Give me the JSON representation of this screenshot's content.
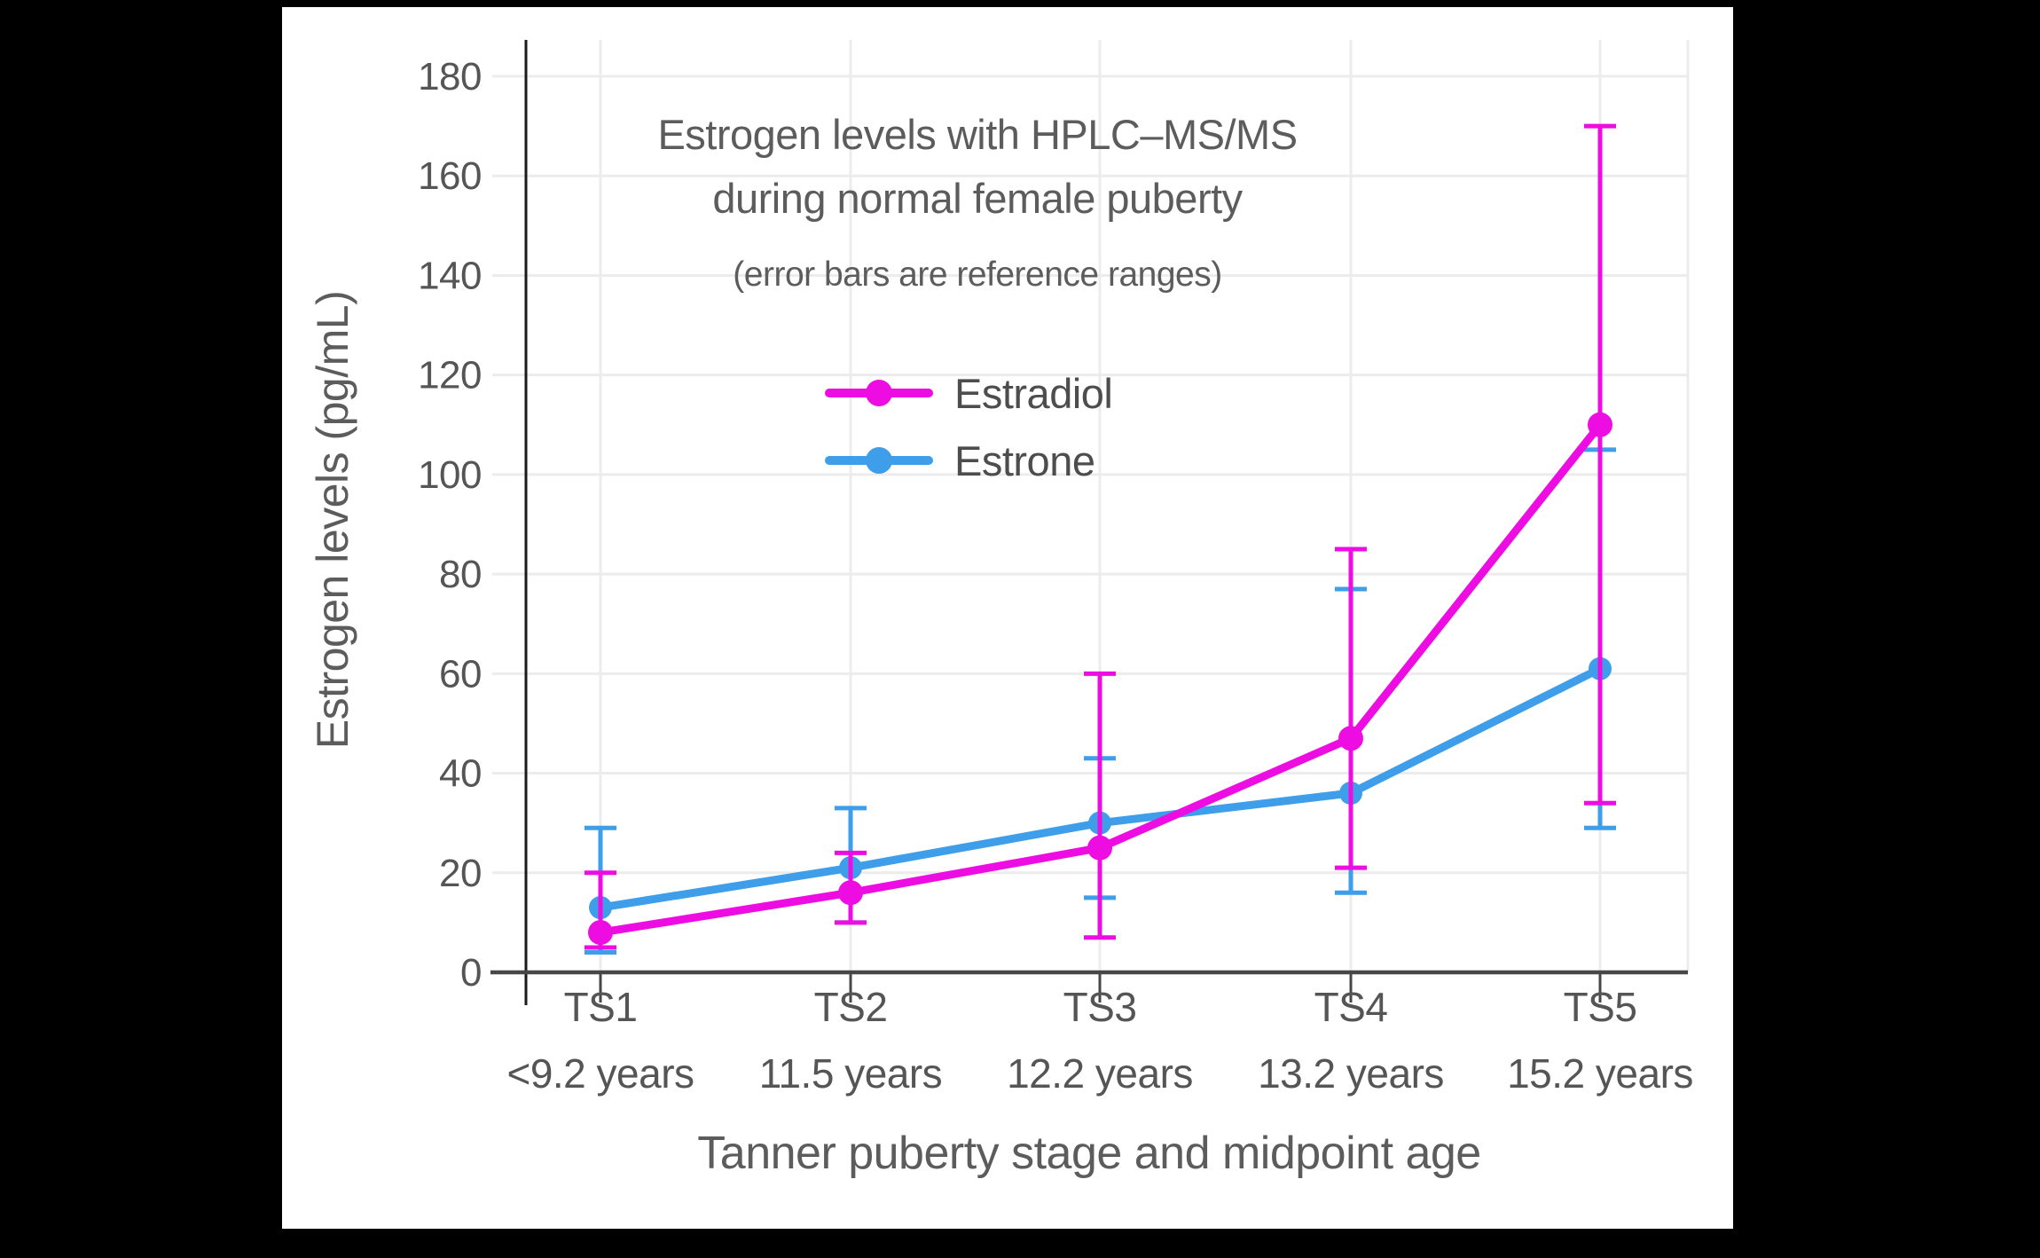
{
  "figure": {
    "title_line1": "Estrogen levels with HPLC–MS/MS",
    "title_line2": "during normal female puberty",
    "subtitle": "(error bars are reference ranges)",
    "y_axis_title": "Estrogen levels (pg/mL)",
    "x_axis_title": "Tanner puberty stage and midpoint age"
  },
  "colors": {
    "estradiol": "#ED0DE3",
    "estrone": "#3E9EE9",
    "grid": "#ececec",
    "axis_line": "#474747",
    "y_spine": "#1a1a1a",
    "tick_text": "#555555",
    "title_text": "#5c5c5c",
    "background": "#ffffff",
    "page_background": "#000000"
  },
  "chart_data": {
    "type": "line",
    "title": "Estrogen levels with HPLC–MS/MS during normal female puberty",
    "subtitle": "(error bars are reference ranges)",
    "xlabel": "Tanner puberty stage and midpoint age",
    "ylabel": "Estrogen levels (pg/mL)",
    "categories": [
      "TS1",
      "TS2",
      "TS3",
      "TS4",
      "TS5"
    ],
    "category_sublabels": [
      "<9.2 years",
      "11.5 years",
      "12.2 years",
      "13.2 years",
      "15.2 years"
    ],
    "ylim": [
      0,
      180
    ],
    "ytick_step": 20,
    "grid": true,
    "error_bars_meaning": "reference ranges",
    "legend_position": "upper-left-of-center",
    "series": [
      {
        "name": "Estradiol",
        "color": "#ED0DE3",
        "values": [
          8,
          16,
          25,
          47,
          110
        ],
        "error_low": [
          5,
          10,
          7,
          21,
          34
        ],
        "error_high": [
          20,
          24,
          60,
          85,
          170
        ]
      },
      {
        "name": "Estrone",
        "color": "#3E9EE9",
        "values": [
          13,
          21,
          30,
          36,
          61
        ],
        "error_low": [
          4,
          10,
          15,
          16,
          29
        ],
        "error_high": [
          29,
          33,
          43,
          77,
          105
        ]
      }
    ]
  }
}
